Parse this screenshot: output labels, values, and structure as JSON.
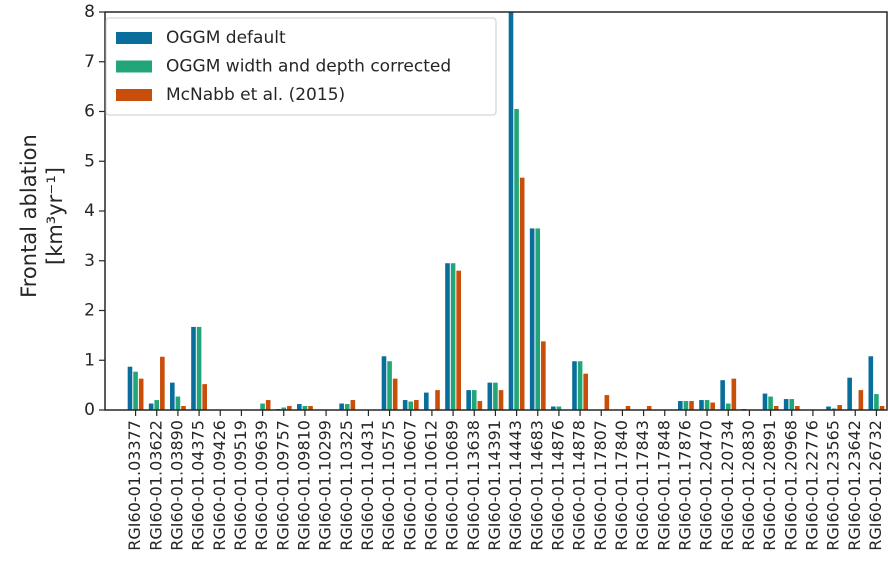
{
  "chart_data": {
    "type": "bar",
    "ylabel": [
      "Frontal ablation",
      "[km³yr⁻¹]"
    ],
    "categories": [
      "RGI60-01.03377",
      "RGI60-01.03622",
      "RGI60-01.03890",
      "RGI60-01.04375",
      "RGI60-01.09426",
      "RGI60-01.09519",
      "RGI60-01.09639",
      "RGI60-01.09757",
      "RGI60-01.09810",
      "RGI60-01.10299",
      "RGI60-01.10325",
      "RGI60-01.10431",
      "RGI60-01.10575",
      "RGI60-01.10607",
      "RGI60-01.10612",
      "RGI60-01.10689",
      "RGI60-01.13638",
      "RGI60-01.14391",
      "RGI60-01.14443",
      "RGI60-01.14683",
      "RGI60-01.14876",
      "RGI60-01.14878",
      "RGI60-01.17807",
      "RGI60-01.17840",
      "RGI60-01.17843",
      "RGI60-01.17848",
      "RGI60-01.17876",
      "RGI60-01.20470",
      "RGI60-01.20734",
      "RGI60-01.20830",
      "RGI60-01.20891",
      "RGI60-01.20968",
      "RGI60-01.22776",
      "RGI60-01.23565",
      "RGI60-01.23642",
      "RGI60-01.26732"
    ],
    "series": [
      {
        "name": "OGGM default",
        "color": "#0a6e9c",
        "values": [
          0.87,
          0.13,
          0.55,
          1.67,
          0,
          0,
          0,
          0.02,
          0.12,
          0,
          0.13,
          0,
          1.08,
          0.2,
          0.35,
          2.95,
          0.4,
          0.55,
          8.0,
          3.65,
          0.07,
          0.98,
          0,
          0,
          0,
          0,
          0.18,
          0.2,
          0.6,
          0.02,
          0.33,
          0.22,
          0,
          0.07,
          0.65,
          1.08
        ]
      },
      {
        "name": "OGGM width and depth corrected",
        "color": "#22a677",
        "values": [
          0.77,
          0.2,
          0.27,
          1.67,
          0,
          0,
          0.13,
          0.05,
          0.08,
          0,
          0.12,
          0,
          0.98,
          0.17,
          0,
          2.95,
          0.4,
          0.55,
          6.05,
          3.65,
          0.07,
          0.98,
          0,
          0,
          0,
          0,
          0.18,
          0.2,
          0.13,
          0,
          0.27,
          0.22,
          0,
          0.03,
          0,
          0.32
        ]
      },
      {
        "name": "McNabb et al. (2015)",
        "color": "#c84e0a",
        "values": [
          0.63,
          1.07,
          0.08,
          0.52,
          0,
          0,
          0.2,
          0.08,
          0.08,
          0,
          0.2,
          0,
          0.63,
          0.2,
          0.4,
          2.8,
          0.18,
          0.4,
          4.67,
          1.38,
          0,
          0.73,
          0.3,
          0.08,
          0.08,
          0,
          0.18,
          0.15,
          0.63,
          0,
          0.08,
          0.08,
          0,
          0.1,
          0.4,
          0.08
        ]
      }
    ],
    "ylim": [
      0,
      8
    ],
    "yticks": [
      0,
      1,
      2,
      3,
      4,
      5,
      6,
      7,
      8
    ],
    "legend": "upper left"
  }
}
